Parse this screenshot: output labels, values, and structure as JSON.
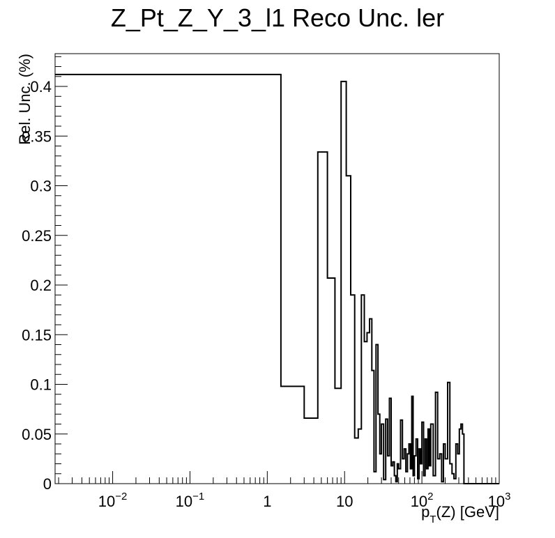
{
  "chart_data": {
    "type": "line",
    "style": "step-histogram",
    "title": "Z_Pt_Z_Y_3_l1 Reco Unc. ler",
    "xlabel": {
      "base": "p",
      "sub": "T",
      "rest": "(Z) [GeV]"
    },
    "ylabel": "Rel. Unc. (%)",
    "x_scale": "log",
    "xlim": [
      0.0018,
      1000
    ],
    "ylim": [
      0,
      0.433
    ],
    "grid": false,
    "legend": "none",
    "line_color": "#000000",
    "y_ticks": [
      {
        "v": 0,
        "label": "0"
      },
      {
        "v": 0.05,
        "label": "0.05"
      },
      {
        "v": 0.1,
        "label": "0.1"
      },
      {
        "v": 0.15,
        "label": "0.15"
      },
      {
        "v": 0.2,
        "label": "0.2"
      },
      {
        "v": 0.25,
        "label": "0.25"
      },
      {
        "v": 0.3,
        "label": "0.3"
      },
      {
        "v": 0.35,
        "label": "0.35"
      },
      {
        "v": 0.4,
        "label": "0.4"
      }
    ],
    "x_ticks": [
      {
        "v": 0.01,
        "base": "10",
        "exp": "−2"
      },
      {
        "v": 0.1,
        "base": "10",
        "exp": "−1"
      },
      {
        "v": 1,
        "base": "1",
        "exp": ""
      },
      {
        "v": 10,
        "base": "10",
        "exp": ""
      },
      {
        "v": 100,
        "base": "10",
        "exp": "2"
      },
      {
        "v": 1000,
        "base": "10",
        "exp": "3"
      }
    ],
    "bin_edges": [
      0.0018,
      1.5,
      3,
      4.5,
      6,
      7.5,
      9,
      10.5,
      12,
      13.5,
      15,
      16.5,
      18,
      19.5,
      21,
      22.5,
      24,
      25.5,
      27,
      28.5,
      30,
      32,
      34,
      36,
      38,
      40,
      42,
      44,
      46,
      48,
      50,
      53,
      56,
      59,
      62,
      65,
      68,
      71,
      74,
      77,
      80,
      84,
      88,
      92,
      96,
      100,
      105,
      110,
      115,
      120,
      125,
      130,
      140,
      150,
      160,
      170,
      180,
      190,
      200,
      215,
      230,
      245,
      260,
      275,
      290,
      305,
      320,
      335,
      350,
      1000
    ],
    "values": [
      0.412,
      0.098,
      0.066,
      0.334,
      0.207,
      0.096,
      0.405,
      0.31,
      0.19,
      0.046,
      0.055,
      0.19,
      0.143,
      0.152,
      0.166,
      0.114,
      0.012,
      0.14,
      0.07,
      0.03,
      0.06,
      0.004,
      0.065,
      0.028,
      0.086,
      0.018,
      0.022,
      0.008,
      0.002,
      0.02,
      0.015,
      0.064,
      0.025,
      0.035,
      0.012,
      0.03,
      0.04,
      0.015,
      0.088,
      0.008,
      0.028,
      0.045,
      0.005,
      0.035,
      0.02,
      0.062,
      0.008,
      0.045,
      0.015,
      0.055,
      0.018,
      0.06,
      0.008,
      0.092,
      0.025,
      0.03,
      0.002,
      0.04,
      0.025,
      0.102,
      0.02,
      0.01,
      0.005,
      0.04,
      0.03,
      0.055,
      0.06,
      0.05,
      0.0
    ]
  }
}
